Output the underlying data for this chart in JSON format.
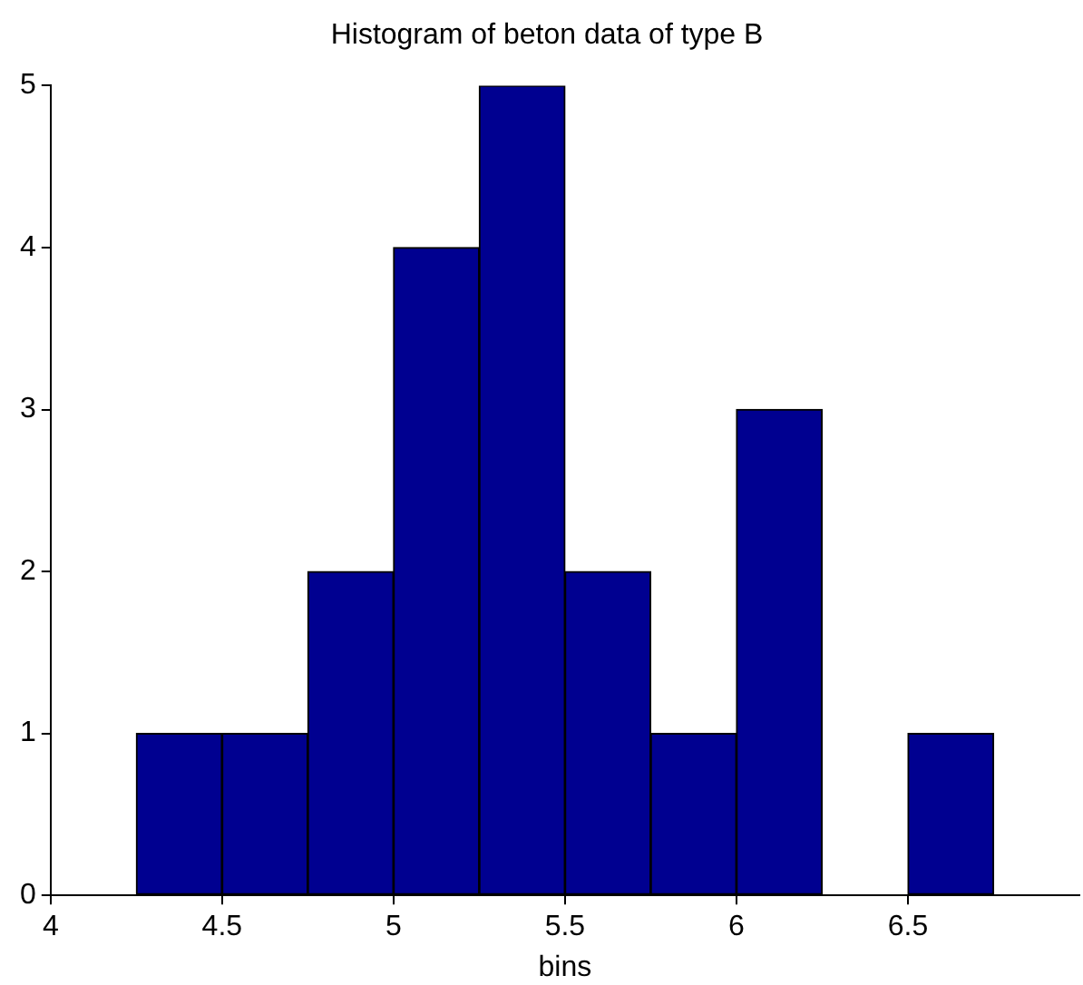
{
  "chart_data": {
    "type": "histogram",
    "title": "Histogram of beton data of type B",
    "xlabel": "bins",
    "bins": [
      4.25,
      4.5,
      4.75,
      5,
      5.25,
      5.5,
      5.75,
      6,
      6.25,
      6.5,
      6.75
    ],
    "values": [
      1,
      1,
      2,
      4,
      5,
      2,
      1,
      3,
      0,
      1
    ],
    "color": "#000090",
    "xlim": [
      4,
      7
    ],
    "xticks": [
      4,
      4.5,
      5,
      5.5,
      6,
      6.5
    ],
    "ylim": [
      0,
      5
    ],
    "yticks": [
      0,
      1,
      2,
      3,
      4,
      5
    ],
    "grid": false,
    "legend": false
  }
}
